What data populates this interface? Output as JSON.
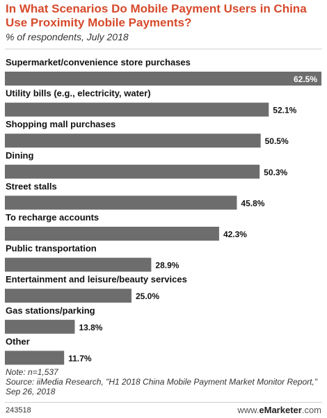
{
  "header": {
    "title": "In What Scenarios Do Mobile Payment Users in China Use Proximity Mobile Payments?",
    "subtitle": "% of respondents, July 2018"
  },
  "chart_data": {
    "type": "bar",
    "orientation": "horizontal",
    "categories": [
      "Supermarket/convenience store purchases",
      "Utility bills (e.g., electricity, water)",
      "Shopping mall purchases",
      "Dining",
      "Street stalls",
      "To recharge accounts",
      "Public transportation",
      "Entertainment and leisure/beauty services",
      "Gas stations/parking",
      "Other"
    ],
    "values": [
      62.5,
      52.1,
      50.5,
      50.3,
      45.8,
      42.3,
      28.9,
      25.0,
      13.8,
      11.7
    ],
    "value_labels": [
      "62.5%",
      "52.1%",
      "50.5%",
      "50.3%",
      "45.8%",
      "42.3%",
      "28.9%",
      "25.0%",
      "13.8%",
      "11.7%"
    ],
    "xlim": [
      0,
      62.5
    ],
    "grid": false,
    "legend": "none",
    "bar_color": "#6d6d6d"
  },
  "notes": {
    "note": "Note: n=1,537",
    "source": "Source: iiMedia Research, \"H1 2018 China Mobile Payment Market Monitor Report,\" Sep 26, 2018"
  },
  "footer": {
    "chart_id": "243518",
    "brand_prefix": "www.",
    "brand_name": "eMarketer",
    "brand_suffix": ".com"
  },
  "colors": {
    "title": "#d64a2b",
    "bar": "#6d6d6d"
  }
}
